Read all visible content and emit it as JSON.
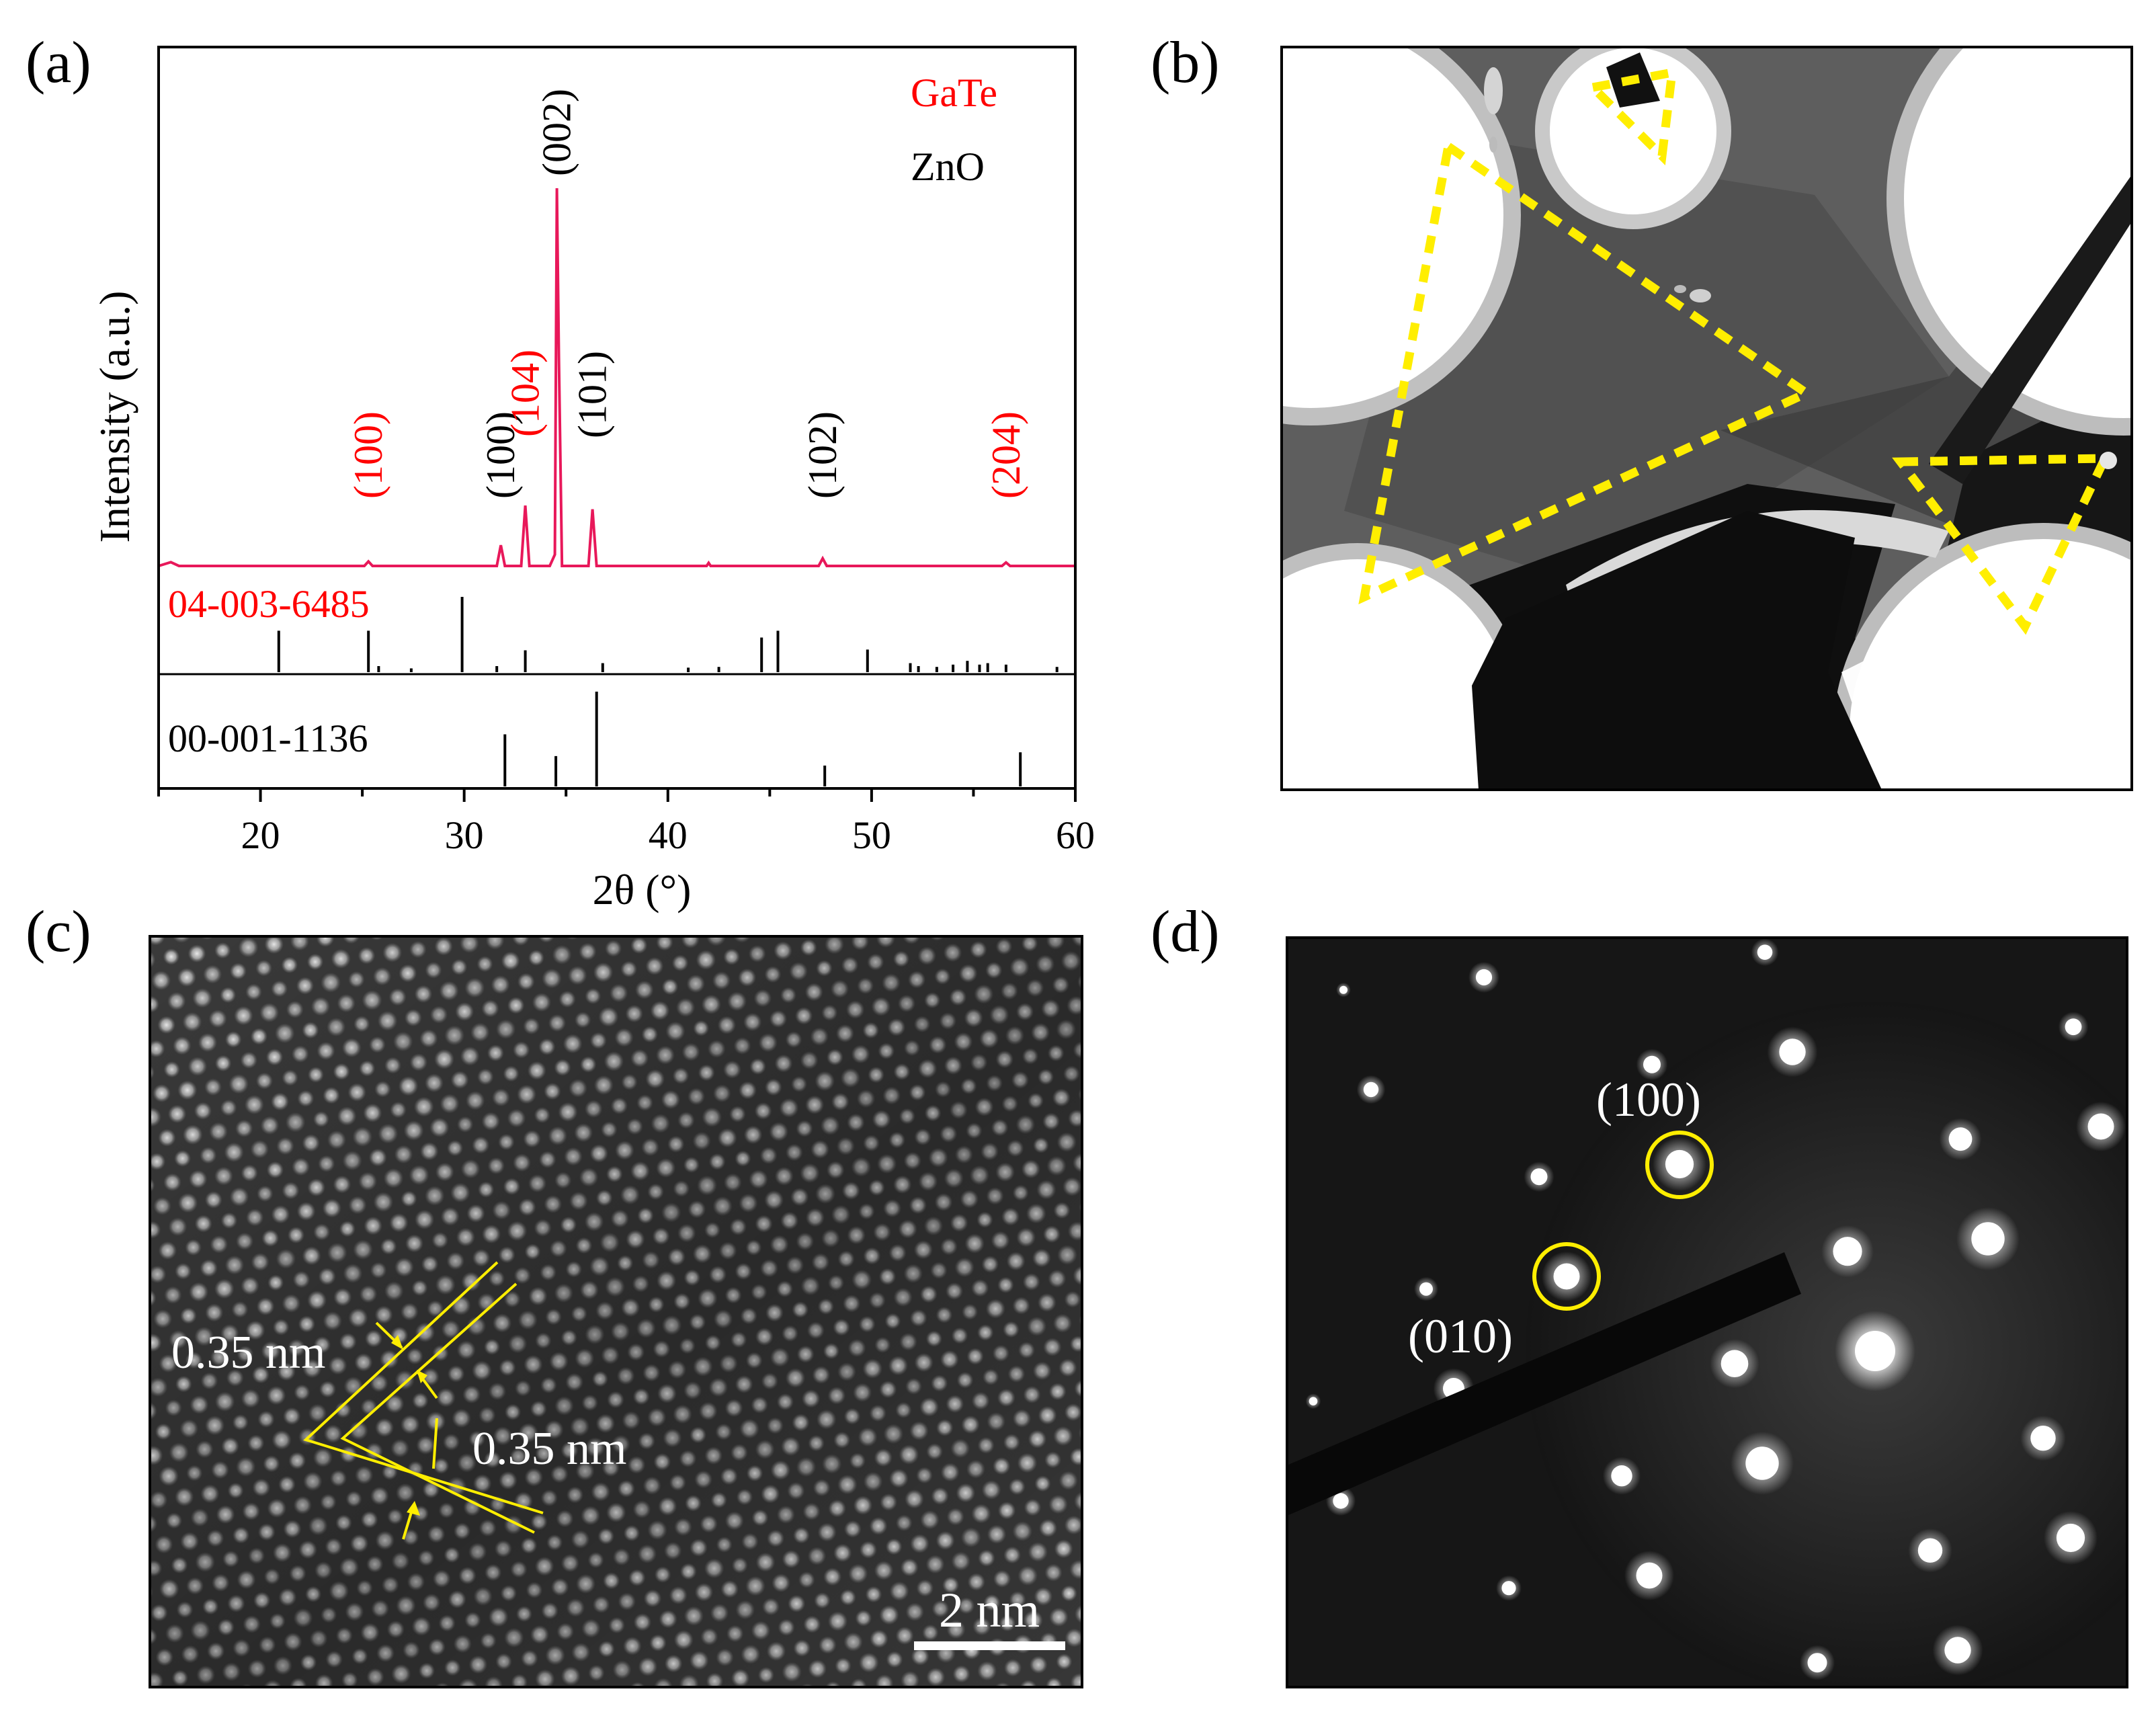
{
  "figure": {
    "panel_labels": [
      "(a)",
      "(b)",
      "(c)",
      "(d)"
    ]
  },
  "chart_data": {
    "type": "line",
    "xlabel": "2θ (°)",
    "ylabel": "Intensity (a.u.)",
    "xlim": [
      15,
      60
    ],
    "xticks": [
      20,
      30,
      40,
      50,
      60
    ],
    "grid": false,
    "legend_placement": "top-right",
    "colors": {
      "gate": "#e8185a",
      "zno": "#000000",
      "ref_label": "#ff0000"
    },
    "legend": [
      {
        "name": "GaTe",
        "color": "#ff0000"
      },
      {
        "name": "ZnO",
        "color": "#000000"
      }
    ],
    "series": [
      {
        "name": "measured",
        "color": "#e8185a",
        "points": [
          [
            15.0,
            0.0
          ],
          [
            15.6,
            0.01
          ],
          [
            16.0,
            0.0
          ],
          [
            25.1,
            0.0
          ],
          [
            25.3,
            0.012
          ],
          [
            25.5,
            0.0
          ],
          [
            31.6,
            0.0
          ],
          [
            31.8,
            0.055
          ],
          [
            32.0,
            0.0
          ],
          [
            32.8,
            0.0
          ],
          [
            33.0,
            0.16
          ],
          [
            33.2,
            0.0
          ],
          [
            34.2,
            0.0
          ],
          [
            34.45,
            0.03
          ],
          [
            34.55,
            1.0
          ],
          [
            34.65,
            0.55
          ],
          [
            34.8,
            0.0
          ],
          [
            36.1,
            0.0
          ],
          [
            36.3,
            0.15
          ],
          [
            36.5,
            0.0
          ],
          [
            41.9,
            0.0
          ],
          [
            42.0,
            0.008
          ],
          [
            42.1,
            0.0
          ],
          [
            47.4,
            0.0
          ],
          [
            47.6,
            0.02
          ],
          [
            47.8,
            0.0
          ],
          [
            56.4,
            0.0
          ],
          [
            56.6,
            0.009
          ],
          [
            56.8,
            0.0
          ],
          [
            60.0,
            0.0
          ]
        ]
      }
    ],
    "peak_labels": [
      {
        "text": "(100)",
        "x": 25.3,
        "phase": "GaTe"
      },
      {
        "text": "(100)",
        "x": 31.8,
        "phase": "ZnO"
      },
      {
        "text": "(104)",
        "x": 33.0,
        "phase": "GaTe"
      },
      {
        "text": "(002)",
        "x": 34.55,
        "phase": "ZnO"
      },
      {
        "text": "(101)",
        "x": 36.3,
        "phase": "ZnO"
      },
      {
        "text": "(102)",
        "x": 47.6,
        "phase": "ZnO"
      },
      {
        "text": "(204)",
        "x": 56.6,
        "phase": "GaTe"
      }
    ],
    "references": [
      {
        "label": "04-003-6485",
        "color": "#ff0000",
        "sticks": [
          [
            20.9,
            0.55
          ],
          [
            25.3,
            0.55
          ],
          [
            25.8,
            0.08
          ],
          [
            27.4,
            0.05
          ],
          [
            29.9,
            1.0
          ],
          [
            31.6,
            0.08
          ],
          [
            33.0,
            0.29
          ],
          [
            36.8,
            0.12
          ],
          [
            41.0,
            0.06
          ],
          [
            42.5,
            0.07
          ],
          [
            44.6,
            0.46
          ],
          [
            45.4,
            0.55
          ],
          [
            49.8,
            0.3
          ],
          [
            51.9,
            0.12
          ],
          [
            52.3,
            0.08
          ],
          [
            53.2,
            0.07
          ],
          [
            54.0,
            0.1
          ],
          [
            54.7,
            0.15
          ],
          [
            55.3,
            0.1
          ],
          [
            55.7,
            0.12
          ],
          [
            56.6,
            0.1
          ],
          [
            59.1,
            0.07
          ]
        ]
      },
      {
        "label": "00-001-1136",
        "color": "#000000",
        "sticks": [
          [
            32.0,
            0.55
          ],
          [
            34.5,
            0.32
          ],
          [
            36.5,
            1.0
          ],
          [
            47.7,
            0.22
          ],
          [
            57.3,
            0.36
          ]
        ]
      }
    ]
  },
  "hrtem": {
    "spacings": [
      "0.35 nm",
      "0.35 nm"
    ],
    "scale_bar": "2 nm"
  },
  "saed": {
    "spots": [
      "(100)",
      "(010)"
    ]
  }
}
